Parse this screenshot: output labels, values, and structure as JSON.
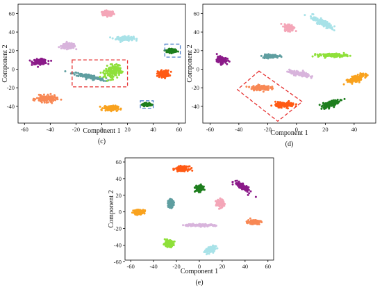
{
  "chart_data": [
    {
      "type": "scatter",
      "panel": "c",
      "caption": "(c)",
      "xlabel": "Component 1",
      "ylabel": "Component 2",
      "xlim": [
        -65,
        65
      ],
      "ylim": [
        -58,
        70
      ],
      "xticks": [
        -60,
        -40,
        -20,
        0,
        20,
        40,
        60
      ],
      "yticks": [
        -40,
        -20,
        0,
        20,
        40,
        60
      ],
      "grid": false,
      "series": [
        {
          "color": "#f4a6b8",
          "center": [
            5,
            60
          ],
          "spread": [
            4,
            3
          ]
        },
        {
          "color": "#a8e2e8",
          "center": [
            18,
            33
          ],
          "spread": [
            6,
            2.5
          ]
        },
        {
          "color": "#d8b4dc",
          "center": [
            -26,
            25
          ],
          "spread": [
            5,
            3
          ]
        },
        {
          "color": "#8b1a89",
          "center": [
            -48,
            8
          ],
          "spread": [
            5,
            3
          ]
        },
        {
          "color": "#5f9ea0",
          "center": [
            -10,
            -8
          ],
          "spread": [
            12,
            2.5
          ],
          "slope": -0.3
        },
        {
          "color": "#8fe03a",
          "center": [
            8,
            -3
          ],
          "spread": [
            7,
            7
          ],
          "slope": 1.1
        },
        {
          "color": "#ff5a14",
          "center": [
            48,
            -5
          ],
          "spread": [
            4,
            4
          ]
        },
        {
          "color": "#1e7e1e",
          "center": [
            55,
            20
          ],
          "spread": [
            3,
            2
          ]
        },
        {
          "color": "#1e7e1e",
          "center": [
            35,
            -38
          ],
          "spread": [
            3,
            1.5
          ]
        },
        {
          "color": "#f88855",
          "center": [
            -43,
            -32
          ],
          "spread": [
            7,
            4
          ]
        },
        {
          "color": "#f9a21e",
          "center": [
            7,
            -42
          ],
          "spread": [
            5,
            3
          ]
        }
      ],
      "annotations": [
        {
          "shape": "dashed-box",
          "color": "#e63232",
          "x": [
            -23,
            20
          ],
          "y": [
            -19,
            10
          ]
        },
        {
          "shape": "dashed-box",
          "color": "#4a7ec8",
          "x": [
            49,
            61
          ],
          "y": [
            13,
            27
          ]
        },
        {
          "shape": "dashed-box",
          "color": "#4a7ec8",
          "x": [
            30,
            40
          ],
          "y": [
            -42,
            -34
          ]
        }
      ]
    },
    {
      "type": "scatter",
      "panel": "d",
      "caption": "(d)",
      "xlabel": "Component 1",
      "ylabel": "Component 2",
      "xlim": [
        -65,
        55
      ],
      "ylim": [
        -58,
        70
      ],
      "xticks": [
        -60,
        -40,
        -20,
        0,
        20,
        40
      ],
      "yticks": [
        -40,
        -20,
        0,
        20,
        40,
        60
      ],
      "grid": false,
      "series": [
        {
          "color": "#a8e2e8",
          "center": [
            18,
            50
          ],
          "spread": [
            8,
            3
          ],
          "slope": -0.9
        },
        {
          "color": "#f4a6b8",
          "center": [
            -5,
            45
          ],
          "spread": [
            3,
            4
          ]
        },
        {
          "color": "#5f9ea0",
          "center": [
            -18,
            14
          ],
          "spread": [
            5,
            2
          ]
        },
        {
          "color": "#8fe03a",
          "center": [
            25,
            15
          ],
          "spread": [
            9,
            2
          ]
        },
        {
          "color": "#8b1a89",
          "center": [
            -52,
            10
          ],
          "spread": [
            3,
            4
          ]
        },
        {
          "color": "#d8b4dc",
          "center": [
            2,
            -5
          ],
          "spread": [
            7,
            2.5
          ],
          "slope": -0.3
        },
        {
          "color": "#f9a21e",
          "center": [
            42,
            -10
          ],
          "spread": [
            3,
            8
          ],
          "slope": -1.5
        },
        {
          "color": "#f88855",
          "center": [
            -25,
            -20
          ],
          "spread": [
            6,
            3
          ]
        },
        {
          "color": "#ff5a14",
          "center": [
            -8,
            -38
          ],
          "spread": [
            6,
            3
          ]
        },
        {
          "color": "#1e7e1e",
          "center": [
            23,
            -38
          ],
          "spread": [
            3,
            8
          ],
          "slope": -2
        }
      ],
      "annotations": [
        {
          "shape": "dashed-polygon",
          "color": "#e63232",
          "points": [
            [
              -26,
              -2
            ],
            [
              -41,
              -22
            ],
            [
              -13,
              -56
            ],
            [
              4,
              -35
            ]
          ]
        }
      ]
    },
    {
      "type": "scatter",
      "panel": "e",
      "caption": "(e)",
      "xlabel": "Component 1",
      "ylabel": "Component 2",
      "xlim": [
        -65,
        65
      ],
      "ylim": [
        -58,
        65
      ],
      "xticks": [
        -60,
        -40,
        -20,
        0,
        20,
        40,
        60
      ],
      "yticks": [
        -60,
        -40,
        -20,
        0,
        20,
        40,
        60
      ],
      "grid": false,
      "series": [
        {
          "color": "#ff5a14",
          "center": [
            -15,
            52
          ],
          "spread": [
            5,
            3
          ]
        },
        {
          "color": "#1e7e1e",
          "center": [
            0,
            28
          ],
          "spread": [
            3,
            4
          ]
        },
        {
          "color": "#8b1a89",
          "center": [
            38,
            30
          ],
          "spread": [
            7,
            3
          ],
          "slope": -0.9
        },
        {
          "color": "#f4a6b8",
          "center": [
            18,
            10
          ],
          "spread": [
            3,
            5
          ]
        },
        {
          "color": "#5f9ea0",
          "center": [
            -25,
            10
          ],
          "spread": [
            2,
            5
          ]
        },
        {
          "color": "#f9a21e",
          "center": [
            -53,
            0
          ],
          "spread": [
            4,
            3
          ]
        },
        {
          "color": "#d8b4dc",
          "center": [
            0,
            -16
          ],
          "spread": [
            12,
            1.5
          ]
        },
        {
          "color": "#f88855",
          "center": [
            48,
            -12
          ],
          "spread": [
            5,
            3
          ]
        },
        {
          "color": "#8fe03a",
          "center": [
            -27,
            -38
          ],
          "spread": [
            4,
            4
          ]
        },
        {
          "color": "#a8e2e8",
          "center": [
            10,
            -45
          ],
          "spread": [
            5,
            3
          ],
          "slope": 0.8
        }
      ],
      "annotations": []
    }
  ]
}
